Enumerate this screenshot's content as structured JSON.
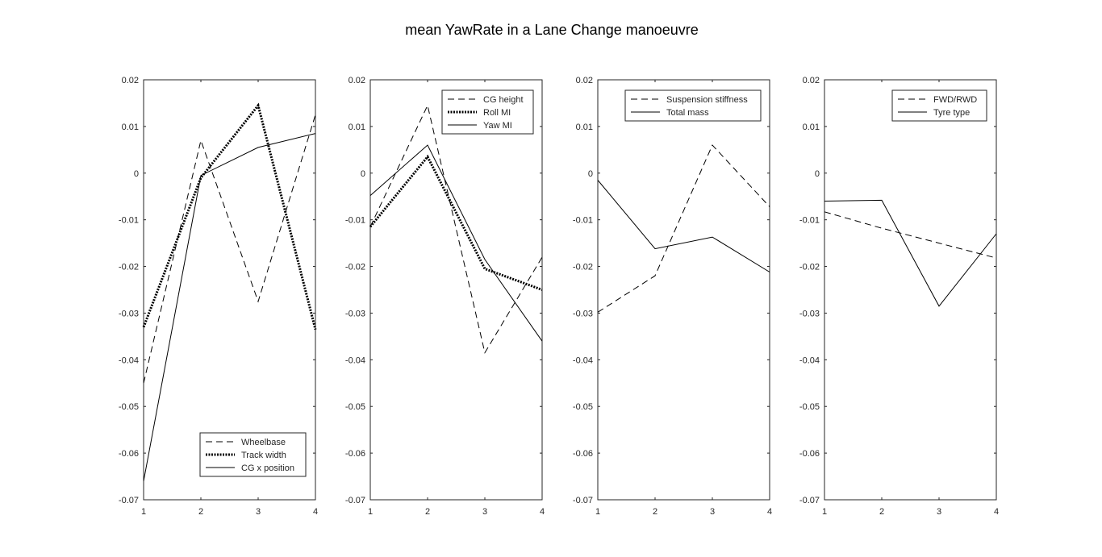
{
  "figure": {
    "title": "mean YawRate in a Lane Change manoeuvre"
  },
  "chart_data": [
    {
      "type": "line",
      "x": [
        1,
        2,
        3,
        4
      ],
      "xlim": [
        1,
        4
      ],
      "ylim": [
        -0.07,
        0.02
      ],
      "xticks": [
        "1",
        "2",
        "3",
        "4"
      ],
      "yticks": [
        "-0.07",
        "-0.06",
        "-0.05",
        "-0.04",
        "-0.03",
        "-0.02",
        "-0.01",
        "0",
        "0.01",
        "0.02"
      ],
      "legend_position": "bottom-right",
      "series": [
        {
          "name": "Wheelbase",
          "style": "dashed",
          "values": [
            -0.045,
            0.007,
            -0.0275,
            0.0125
          ]
        },
        {
          "name": "Track width",
          "style": "dotted",
          "values": [
            -0.033,
            -0.001,
            0.0145,
            -0.0335
          ]
        },
        {
          "name": "CG x position",
          "style": "solid",
          "values": [
            -0.066,
            -0.0005,
            0.0055,
            0.0085
          ]
        }
      ]
    },
    {
      "type": "line",
      "x": [
        1,
        2,
        3,
        4
      ],
      "xlim": [
        1,
        4
      ],
      "ylim": [
        -0.07,
        0.02
      ],
      "xticks": [
        "1",
        "2",
        "3",
        "4"
      ],
      "yticks": [
        "-0.07",
        "-0.06",
        "-0.05",
        "-0.04",
        "-0.03",
        "-0.02",
        "-0.01",
        "0",
        "0.01",
        "0.02"
      ],
      "legend_position": "top-right",
      "series": [
        {
          "name": "CG height",
          "style": "dashed",
          "values": [
            -0.0115,
            0.0145,
            -0.0385,
            -0.018
          ]
        },
        {
          "name": "Roll MI",
          "style": "dotted",
          "values": [
            -0.0115,
            0.0035,
            -0.0205,
            -0.025
          ]
        },
        {
          "name": "Yaw MI",
          "style": "solid",
          "values": [
            -0.0048,
            0.006,
            -0.0185,
            -0.036
          ]
        }
      ]
    },
    {
      "type": "line",
      "x": [
        1,
        2,
        3,
        4
      ],
      "xlim": [
        1,
        4
      ],
      "ylim": [
        -0.07,
        0.02
      ],
      "xticks": [
        "1",
        "2",
        "3",
        "4"
      ],
      "yticks": [
        "-0.07",
        "-0.06",
        "-0.05",
        "-0.04",
        "-0.03",
        "-0.02",
        "-0.01",
        "0",
        "0.01",
        "0.02"
      ],
      "legend_position": "top-right",
      "series": [
        {
          "name": "Suspension stiffness",
          "style": "dashed",
          "values": [
            -0.0298,
            -0.022,
            0.006,
            -0.0072
          ]
        },
        {
          "name": "Total mass",
          "style": "solid",
          "values": [
            -0.0015,
            -0.0162,
            -0.0137,
            -0.0212
          ]
        }
      ]
    },
    {
      "type": "line",
      "x": [
        1,
        2,
        3,
        4
      ],
      "xlim": [
        1,
        4
      ],
      "ylim": [
        -0.07,
        0.02
      ],
      "xticks": [
        "1",
        "2",
        "3",
        "4"
      ],
      "yticks": [
        "-0.07",
        "-0.06",
        "-0.05",
        "-0.04",
        "-0.03",
        "-0.02",
        "-0.01",
        "0",
        "0.01",
        "0.02"
      ],
      "legend_position": "top-right",
      "series": [
        {
          "name": "FWD/RWD",
          "style": "dashed",
          "values": [
            -0.0083,
            -0.0118,
            -0.015,
            -0.0182
          ]
        },
        {
          "name": "Tyre type",
          "style": "solid",
          "values": [
            -0.006,
            -0.0058,
            -0.0285,
            -0.013
          ]
        }
      ]
    }
  ]
}
